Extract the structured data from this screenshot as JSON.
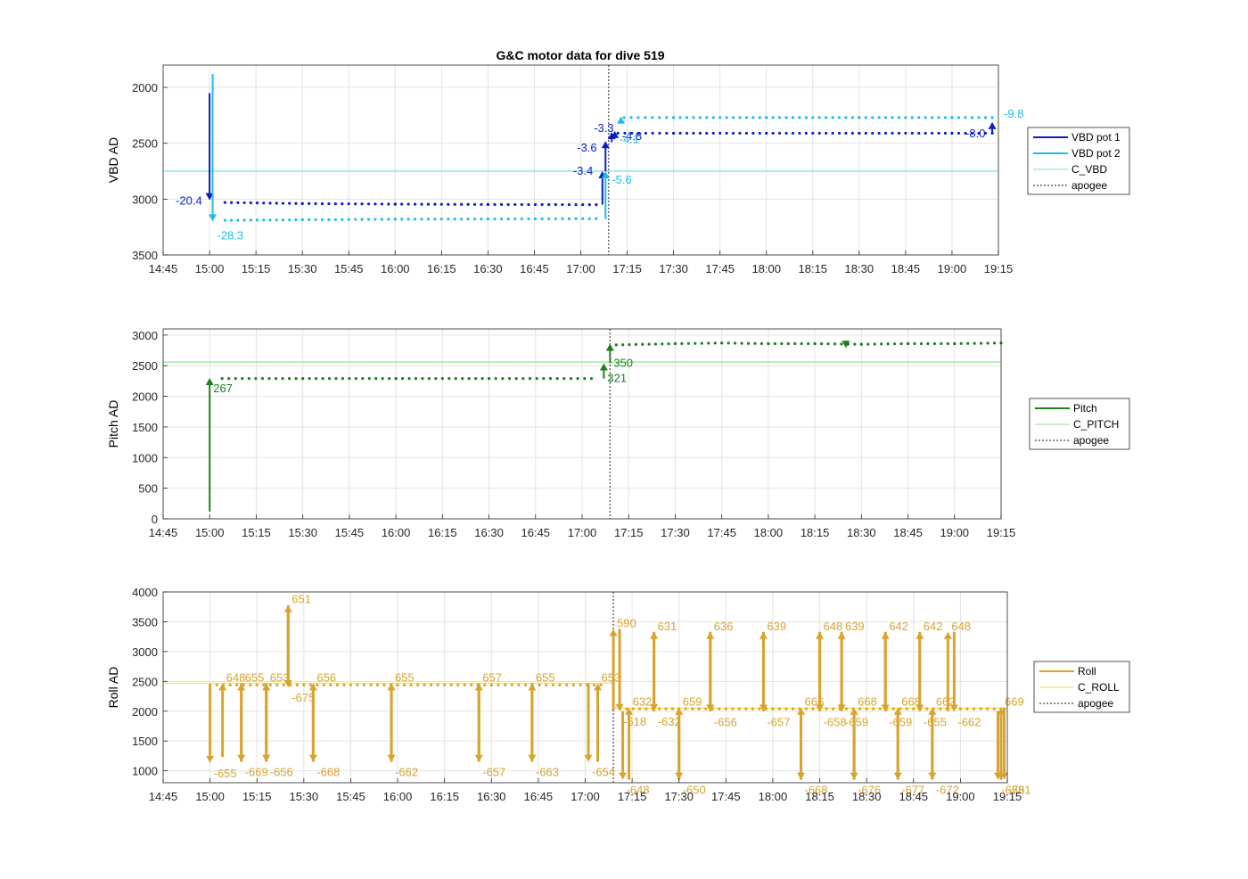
{
  "figure": {
    "title": "G&C motor data for dive 519"
  },
  "colors": {
    "vbd1": "#0a1fc4",
    "vbd2": "#1ebde8",
    "c_vbd": "#78dfe6",
    "pitch": "#1f7f1f",
    "c_pitch": "#8fe08f",
    "roll": "#d8a430",
    "c_roll": "#f2e44a",
    "apogee": "#606060",
    "grid": "#e3e3e3",
    "axis": "#262626"
  },
  "chart_data": [
    {
      "type": "line",
      "title": "G&C motor data for dive 519",
      "xlabel": "",
      "ylabel": "VBD AD",
      "xlim": [
        "14:45",
        "19:15"
      ],
      "ylim": [
        3500,
        1800
      ],
      "y_reversed": true,
      "grid": true,
      "legend_position": "right",
      "x_ticks": [
        "14:45",
        "15:00",
        "15:15",
        "15:30",
        "15:45",
        "16:00",
        "16:15",
        "16:30",
        "16:45",
        "17:00",
        "17:15",
        "17:30",
        "17:45",
        "18:00",
        "18:15",
        "18:30",
        "18:45",
        "19:00",
        "19:15"
      ],
      "y_ticks": [
        2000,
        2500,
        3000,
        3500
      ],
      "reference_lines": [
        {
          "name": "C_VBD",
          "value": 2750,
          "color_key": "c_vbd"
        }
      ],
      "apogee_time": "17:09",
      "series": [
        {
          "name": "VBD pot 1",
          "color_key": "vbd1",
          "segments": [
            {
              "x": [
                "15:05",
                "15:30",
                "16:00",
                "16:30",
                "17:05"
              ],
              "y": [
                3030,
                3040,
                3045,
                3048,
                3050
              ]
            },
            {
              "x": [
                "17:12",
                "17:30",
                "18:00",
                "18:30",
                "19:00",
                "19:13"
              ],
              "y": [
                2410,
                2410,
                2410,
                2410,
                2410,
                2410
              ]
            }
          ]
        },
        {
          "name": "VBD pot 2",
          "color_key": "vbd2",
          "segments": [
            {
              "x": [
                "15:05",
                "15:30",
                "16:00",
                "16:30",
                "17:05"
              ],
              "y": [
                3190,
                3185,
                3180,
                3178,
                3175
              ]
            },
            {
              "x": [
                "17:14",
                "17:30",
                "18:00",
                "18:30",
                "19:00",
                "19:13"
              ],
              "y": [
                2270,
                2270,
                2270,
                2270,
                2270,
                2270
              ]
            }
          ]
        }
      ],
      "annotations": [
        {
          "label": "-20.4",
          "series": "vbd1",
          "x": "15:00",
          "y_from": 2050,
          "y_to": 3010
        },
        {
          "label": "-28.3",
          "series": "vbd2",
          "x": "15:01",
          "y_from": 1880,
          "y_to": 3200
        },
        {
          "label": "-3.4",
          "series": "vbd1",
          "x": "17:07",
          "y_from": 3050,
          "y_to": 2750
        },
        {
          "label": "-5.6",
          "series": "vbd2",
          "x": "17:08",
          "y_from": 3180,
          "y_to": 2750
        },
        {
          "label": "-3.6",
          "series": "vbd1",
          "x": "17:08",
          "y_from": 2750,
          "y_to": 2480
        },
        {
          "label": "-3.3",
          "series": "vbd1",
          "x": "17:10",
          "y_from": 2490,
          "y_to": 2400
        },
        {
          "label": "-4.8",
          "series": "vbd1",
          "x": "17:11",
          "y_from": 2430,
          "y_to": 2390
        },
        {
          "label": "-4.1",
          "series": "vbd2",
          "x": "17:13",
          "y_from": 2320,
          "y_to": 2260
        },
        {
          "label": "-8.0",
          "series": "vbd1",
          "x": "19:13",
          "y_from": 2400,
          "y_to": 2310
        },
        {
          "label": "-9.8",
          "series": "vbd2",
          "x": "19:13",
          "y_from": 2280,
          "y_to": 2280
        }
      ]
    },
    {
      "type": "line",
      "xlabel": "",
      "ylabel": "Pitch AD",
      "xlim": [
        "14:45",
        "19:15"
      ],
      "ylim": [
        0,
        3100
      ],
      "grid": true,
      "legend_position": "right",
      "x_ticks": [
        "14:45",
        "15:00",
        "15:15",
        "15:30",
        "15:45",
        "16:00",
        "16:15",
        "16:30",
        "16:45",
        "17:00",
        "17:15",
        "17:30",
        "17:45",
        "18:00",
        "18:15",
        "18:30",
        "18:45",
        "19:00",
        "19:15"
      ],
      "y_ticks": [
        0,
        500,
        1000,
        1500,
        2000,
        2500,
        3000
      ],
      "reference_lines": [
        {
          "name": "C_PITCH",
          "value": 2560,
          "color_key": "c_pitch"
        }
      ],
      "apogee_time": "17:09",
      "series": [
        {
          "name": "Pitch",
          "color_key": "pitch",
          "segments": [
            {
              "x": [
                "15:04",
                "15:30",
                "16:00",
                "16:30",
                "17:03"
              ],
              "y": [
                2290,
                2290,
                2290,
                2290,
                2290
              ]
            },
            {
              "x": [
                "17:11",
                "17:30",
                "17:45",
                "18:00",
                "18:15",
                "18:30",
                "18:45",
                "19:00",
                "19:15"
              ],
              "y": [
                2840,
                2860,
                2870,
                2860,
                2860,
                2850,
                2860,
                2860,
                2870
              ]
            }
          ]
        }
      ],
      "annotations": [
        {
          "label": "267",
          "series": "pitch",
          "x": "15:00",
          "y_from": 120,
          "y_to": 2300
        },
        {
          "label": "321",
          "series": "pitch",
          "x": "17:07",
          "y_from": 2290,
          "y_to": 2540
        },
        {
          "label": "350",
          "series": "pitch",
          "x": "17:09",
          "y_from": 2540,
          "y_to": 2860
        },
        {
          "label": "",
          "series": "pitch",
          "x": "18:25",
          "y_from": 2880,
          "y_to": 2790
        }
      ]
    },
    {
      "type": "line",
      "xlabel": "",
      "ylabel": "Roll AD",
      "xlim": [
        "14:45",
        "19:15"
      ],
      "ylim": [
        800,
        4000
      ],
      "grid": true,
      "legend_position": "right",
      "x_ticks": [
        "14:45",
        "15:00",
        "15:15",
        "15:30",
        "15:45",
        "16:00",
        "16:15",
        "16:30",
        "16:45",
        "17:00",
        "17:15",
        "17:30",
        "17:45",
        "18:00",
        "18:15",
        "18:30",
        "18:45",
        "19:00",
        "19:15"
      ],
      "y_ticks": [
        1000,
        1500,
        2000,
        2500,
        3000,
        3500,
        4000
      ],
      "reference_lines": [
        {
          "name": "C_ROLL",
          "value_segments": [
            {
              "x_from": "14:45",
              "x_to": "17:09",
              "value": 2470
            },
            {
              "x_from": "17:09",
              "x_to": "19:15",
              "value": 2050
            }
          ],
          "color_key": "c_roll"
        }
      ],
      "apogee_time": "17:09",
      "series": [
        {
          "name": "Roll",
          "color_key": "roll",
          "segments": [
            {
              "x": [
                "15:00",
                "15:30",
                "16:00",
                "16:30",
                "17:05"
              ],
              "y": [
                2440,
                2440,
                2440,
                2440,
                2440
              ]
            },
            {
              "x": [
                "17:09",
                "17:30",
                "18:00",
                "18:30",
                "19:00",
                "19:13"
              ],
              "y": [
                2040,
                2040,
                2040,
                2040,
                2040,
                2040
              ]
            }
          ]
        }
      ],
      "annotations": [
        {
          "label": "-655",
          "x": "15:00",
          "y_from": 2430,
          "y_to": 1130,
          "dir": "down"
        },
        {
          "label": "648",
          "x": "15:04",
          "y_from": 1230,
          "y_to": 2470,
          "dir": "up"
        },
        {
          "label": "-669",
          "x": "15:10",
          "y_from": 2470,
          "y_to": 1150,
          "dir": "down"
        },
        {
          "label": "655",
          "x": "15:10",
          "y_from": 1150,
          "y_to": 2470,
          "dir": "up"
        },
        {
          "label": "-656",
          "x": "15:18",
          "y_from": 2470,
          "y_to": 1150,
          "dir": "down"
        },
        {
          "label": "653",
          "x": "15:18",
          "y_from": 1150,
          "y_to": 2470,
          "dir": "up"
        },
        {
          "label": "651",
          "x": "15:25",
          "y_from": 2470,
          "y_to": 3780,
          "dir": "up"
        },
        {
          "label": "-675",
          "x": "15:25",
          "y_from": 3780,
          "y_to": 2400,
          "dir": "down"
        },
        {
          "label": "-668",
          "x": "15:33",
          "y_from": 2450,
          "y_to": 1150,
          "dir": "down"
        },
        {
          "label": "656",
          "x": "15:33",
          "y_from": 1150,
          "y_to": 2470,
          "dir": "up"
        },
        {
          "label": "-662",
          "x": "15:58",
          "y_from": 2470,
          "y_to": 1150,
          "dir": "down"
        },
        {
          "label": "655",
          "x": "15:58",
          "y_from": 1150,
          "y_to": 2470,
          "dir": "up"
        },
        {
          "label": "-657",
          "x": "16:26",
          "y_from": 2470,
          "y_to": 1150,
          "dir": "down"
        },
        {
          "label": "657",
          "x": "16:26",
          "y_from": 1150,
          "y_to": 2470,
          "dir": "up"
        },
        {
          "label": "-663",
          "x": "16:43",
          "y_from": 2470,
          "y_to": 1150,
          "dir": "down"
        },
        {
          "label": "655",
          "x": "16:43",
          "y_from": 1150,
          "y_to": 2470,
          "dir": "up"
        },
        {
          "label": "-654",
          "x": "17:01",
          "y_from": 2470,
          "y_to": 1150,
          "dir": "down"
        },
        {
          "label": "653",
          "x": "17:04",
          "y_from": 1150,
          "y_to": 2470,
          "dir": "up"
        },
        {
          "label": "590",
          "x": "17:09",
          "y_from": 2050,
          "y_to": 3380,
          "dir": "up"
        },
        {
          "label": "-618",
          "x": "17:11",
          "y_from": 3380,
          "y_to": 2000,
          "dir": "down"
        },
        {
          "label": "-648",
          "x": "17:12",
          "y_from": 2000,
          "y_to": 850,
          "dir": "down"
        },
        {
          "label": "632",
          "x": "17:14",
          "y_from": 850,
          "y_to": 2060,
          "dir": "up"
        },
        {
          "label": "631",
          "x": "17:22",
          "y_from": 2000,
          "y_to": 3330,
          "dir": "up"
        },
        {
          "label": "-632",
          "x": "17:22",
          "y_from": 3330,
          "y_to": 2000,
          "dir": "down"
        },
        {
          "label": "-650",
          "x": "17:30",
          "y_from": 2000,
          "y_to": 850,
          "dir": "down"
        },
        {
          "label": "659",
          "x": "17:30",
          "y_from": 850,
          "y_to": 2060,
          "dir": "up"
        },
        {
          "label": "636",
          "x": "17:40",
          "y_from": 2000,
          "y_to": 3330,
          "dir": "up"
        },
        {
          "label": "-656",
          "x": "17:40",
          "y_from": 3330,
          "y_to": 1990,
          "dir": "down"
        },
        {
          "label": "639",
          "x": "17:57",
          "y_from": 2000,
          "y_to": 3330,
          "dir": "up"
        },
        {
          "label": "-657",
          "x": "17:57",
          "y_from": 3330,
          "y_to": 1990,
          "dir": "down"
        },
        {
          "label": "-668",
          "x": "18:09",
          "y_from": 2000,
          "y_to": 850,
          "dir": "down"
        },
        {
          "label": "666",
          "x": "18:09",
          "y_from": 850,
          "y_to": 2060,
          "dir": "up"
        },
        {
          "label": "648",
          "x": "18:15",
          "y_from": 2000,
          "y_to": 3330,
          "dir": "up"
        },
        {
          "label": "-658",
          "x": "18:15",
          "y_from": 3330,
          "y_to": 1990,
          "dir": "down"
        },
        {
          "label": "639",
          "x": "18:22",
          "y_from": 2000,
          "y_to": 3330,
          "dir": "up"
        },
        {
          "label": "-659",
          "x": "18:22",
          "y_from": 3330,
          "y_to": 1990,
          "dir": "down"
        },
        {
          "label": "-676",
          "x": "18:26",
          "y_from": 2000,
          "y_to": 850,
          "dir": "down"
        },
        {
          "label": "668",
          "x": "18:26",
          "y_from": 850,
          "y_to": 2060,
          "dir": "up"
        },
        {
          "label": "642",
          "x": "18:36",
          "y_from": 2000,
          "y_to": 3330,
          "dir": "up"
        },
        {
          "label": "-659",
          "x": "18:36",
          "y_from": 3330,
          "y_to": 1990,
          "dir": "down"
        },
        {
          "label": "-677",
          "x": "18:40",
          "y_from": 2000,
          "y_to": 850,
          "dir": "down"
        },
        {
          "label": "668",
          "x": "18:40",
          "y_from": 850,
          "y_to": 2060,
          "dir": "up"
        },
        {
          "label": "642",
          "x": "18:47",
          "y_from": 2000,
          "y_to": 3330,
          "dir": "up"
        },
        {
          "label": "-655",
          "x": "18:47",
          "y_from": 3330,
          "y_to": 1990,
          "dir": "down"
        },
        {
          "label": "-672",
          "x": "18:51",
          "y_from": 2000,
          "y_to": 850,
          "dir": "down"
        },
        {
          "label": "662",
          "x": "18:51",
          "y_from": 850,
          "y_to": 2060,
          "dir": "up"
        },
        {
          "label": "648",
          "x": "18:56",
          "y_from": 2000,
          "y_to": 3330,
          "dir": "up"
        },
        {
          "label": "-662",
          "x": "18:58",
          "y_from": 3330,
          "y_to": 1990,
          "dir": "down"
        },
        {
          "label": "-676",
          "x": "19:12",
          "y_from": 2000,
          "y_to": 850,
          "dir": "down"
        },
        {
          "label": "669",
          "x": "19:13",
          "y_from": 850,
          "y_to": 2060,
          "dir": "up"
        },
        {
          "label": "-681",
          "x": "19:14",
          "y_from": 2060,
          "y_to": 850,
          "dir": "down"
        }
      ]
    }
  ],
  "legends": [
    [
      {
        "label": "VBD pot 1",
        "color_key": "vbd1",
        "style": "solid-thick"
      },
      {
        "label": "VBD pot 2",
        "color_key": "vbd2",
        "style": "solid-thick"
      },
      {
        "label": "C_VBD",
        "color_key": "c_vbd",
        "style": "solid-thin"
      },
      {
        "label": "apogee",
        "color_key": "apogee",
        "style": "dotted"
      }
    ],
    [
      {
        "label": "Pitch",
        "color_key": "pitch",
        "style": "solid-thick"
      },
      {
        "label": "C_PITCH",
        "color_key": "c_pitch",
        "style": "solid-thin"
      },
      {
        "label": "apogee",
        "color_key": "apogee",
        "style": "dotted"
      }
    ],
    [
      {
        "label": "Roll",
        "color_key": "roll",
        "style": "solid-thick"
      },
      {
        "label": "C_ROLL",
        "color_key": "c_roll",
        "style": "solid-thin"
      },
      {
        "label": "apogee",
        "color_key": "apogee",
        "style": "dotted"
      }
    ]
  ]
}
